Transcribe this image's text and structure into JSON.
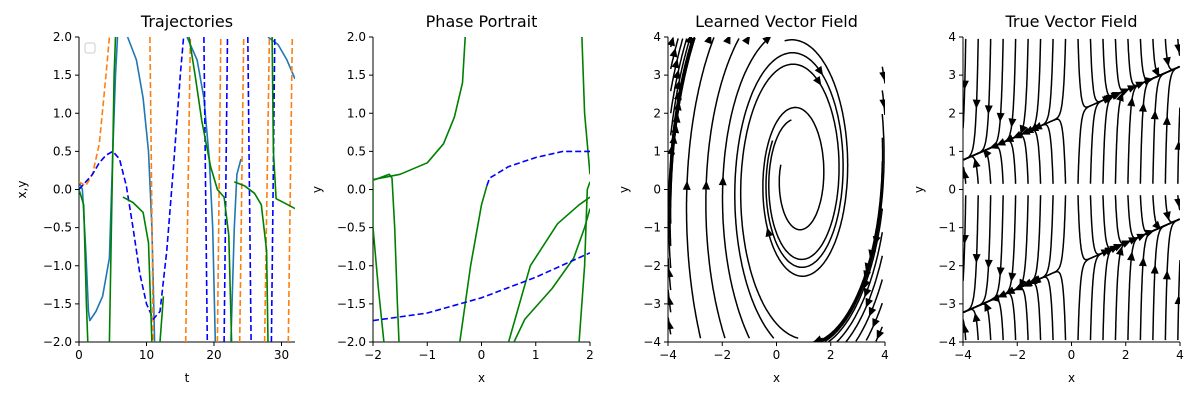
{
  "chart_data": [
    {
      "type": "line",
      "title": "Trajectories",
      "xlabel": "t",
      "ylabel": "x,y",
      "xlim": [
        0,
        32
      ],
      "ylim": [
        -2.0,
        2.0
      ],
      "xticks": [
        0,
        10,
        20,
        30
      ],
      "yticks": [
        -2.0,
        -1.5,
        -1.0,
        -0.5,
        0.0,
        0.5,
        1.0,
        1.5,
        2.0
      ],
      "xtick_labels": [
        "0",
        "10",
        "20",
        "30"
      ],
      "ytick_labels": [
        "−2.0",
        "−1.5",
        "−1.0",
        "−0.5",
        "0.0",
        "0.5",
        "1.0",
        "1.5",
        "2.0"
      ],
      "legend": "top-left (empty)",
      "series": [
        {
          "color": "#1f77b4",
          "style": "solid",
          "points": [
            [
              0,
              0.1
            ],
            [
              0.5,
              0.0
            ],
            [
              1.0,
              -0.8
            ],
            [
              1.4,
              -1.6
            ],
            [
              1.6,
              -1.72
            ],
            [
              2.5,
              -1.6
            ],
            [
              3.5,
              -1.4
            ],
            [
              4.5,
              -0.9
            ],
            [
              5.0,
              0.5
            ],
            [
              5.4,
              1.5
            ],
            [
              5.7,
              2.0
            ]
          ],
          "segments": [
            [
              [
                7.2,
                2.0
              ],
              [
                8.5,
                1.7
              ],
              [
                9.5,
                1.2
              ],
              [
                10.3,
                0.5
              ],
              [
                10.8,
                -0.5
              ],
              [
                11.2,
                -2.0
              ]
            ],
            [
              [
                16.0,
                2.0
              ],
              [
                17.5,
                1.7
              ],
              [
                18.5,
                1.2
              ],
              [
                19.3,
                0.4
              ],
              [
                19.8,
                -0.5
              ],
              [
                20.2,
                -2.0
              ]
            ],
            [
              [
                22.5,
                -2.0
              ],
              [
                23.0,
                -0.5
              ],
              [
                23.4,
                0.2
              ],
              [
                24.0,
                0.4
              ]
            ],
            [
              [
                28.0,
                2.0
              ],
              [
                29.5,
                1.9
              ],
              [
                30.8,
                1.7
              ],
              [
                32.0,
                1.45
              ]
            ]
          ]
        },
        {
          "color": "#ff7f0e",
          "style": "dashed",
          "points": [
            [
              0,
              0.1
            ],
            [
              1.0,
              0.05
            ],
            [
              2.0,
              0.2
            ],
            [
              3.0,
              0.6
            ],
            [
              4.0,
              1.5
            ],
            [
              4.5,
              2.0
            ]
          ],
          "segments": [
            [
              [
                10.5,
                2.0
              ],
              [
                11.0,
                -2.0
              ]
            ],
            [
              [
                15.8,
                -2.0
              ],
              [
                16.5,
                2.0
              ]
            ],
            [
              [
                20.5,
                -2.0
              ],
              [
                21.0,
                2.0
              ]
            ],
            [
              [
                23.8,
                -2.0
              ],
              [
                24.4,
                2.0
              ]
            ],
            [
              [
                27.5,
                -2.0
              ],
              [
                28.2,
                2.0
              ]
            ],
            [
              [
                31.0,
                -2.0
              ],
              [
                31.6,
                2.0
              ]
            ]
          ]
        },
        {
          "color": "#0000ff",
          "style": "dashed",
          "points": [
            [
              0,
              0.0
            ],
            [
              1.0,
              0.1
            ],
            [
              2.0,
              0.2
            ],
            [
              3.0,
              0.35
            ],
            [
              4.0,
              0.45
            ],
            [
              5.0,
              0.5
            ],
            [
              6.0,
              0.4
            ],
            [
              7.0,
              0.05
            ],
            [
              8.0,
              -0.5
            ],
            [
              9.0,
              -1.1
            ],
            [
              10.0,
              -1.5
            ],
            [
              11.0,
              -1.7
            ],
            [
              12.0,
              -1.6
            ],
            [
              13.0,
              -0.8
            ],
            [
              14.0,
              0.3
            ],
            [
              15.0,
              1.5
            ],
            [
              15.5,
              2.0
            ]
          ],
          "segments": [
            [
              [
                18.5,
                2.0
              ],
              [
                19.0,
                -2.0
              ]
            ],
            [
              [
                21.5,
                -2.0
              ],
              [
                22.0,
                2.0
              ]
            ],
            [
              [
                25.0,
                2.0
              ],
              [
                25.5,
                -2.0
              ]
            ],
            [
              [
                28.5,
                -2.0
              ],
              [
                29.0,
                2.0
              ]
            ]
          ]
        },
        {
          "color": "#008000",
          "style": "solid",
          "points": [
            [
              0,
              0.0
            ],
            [
              0.7,
              -0.2
            ],
            [
              1.1,
              -1.5
            ],
            [
              1.3,
              -2.0
            ]
          ],
          "segments": [
            [
              [
                4.5,
                -2.0
              ],
              [
                4.8,
                -0.5
              ],
              [
                5.0,
                0.5
              ],
              [
                5.2,
                1.5
              ],
              [
                5.4,
                2.0
              ]
            ],
            [
              [
                6.5,
                -0.1
              ],
              [
                8.0,
                -0.17
              ],
              [
                9.5,
                -0.3
              ],
              [
                10.3,
                -0.7
              ],
              [
                10.8,
                -2.0
              ]
            ],
            [
              [
                12.0,
                -2.0
              ],
              [
                12.5,
                -1.4
              ]
            ],
            [
              [
                16.3,
                2.0
              ],
              [
                17.2,
                1.5
              ],
              [
                18.2,
                0.9
              ],
              [
                19.5,
                0.3
              ],
              [
                20.5,
                0.0
              ],
              [
                21.5,
                -0.1
              ],
              [
                22.2,
                -0.6
              ],
              [
                22.6,
                -2.0
              ]
            ],
            [
              [
                23.0,
                0.1
              ],
              [
                24.5,
                0.05
              ],
              [
                26.0,
                -0.05
              ],
              [
                27.0,
                -0.2
              ],
              [
                27.8,
                -0.8
              ],
              [
                28.0,
                -2.0
              ]
            ],
            [
              [
                28.6,
                2.0
              ],
              [
                28.8,
                0.5
              ],
              [
                29.2,
                -0.12
              ],
              [
                30.5,
                -0.18
              ],
              [
                32.0,
                -0.25
              ]
            ]
          ]
        }
      ]
    },
    {
      "type": "line",
      "title": "Phase Portrait",
      "xlabel": "x",
      "ylabel": "y",
      "xlim": [
        -2,
        2
      ],
      "ylim": [
        -2.0,
        2.0
      ],
      "xticks": [
        -2,
        -1,
        0,
        1,
        2
      ],
      "yticks": [
        -2.0,
        -1.5,
        -1.0,
        -0.5,
        0.0,
        0.5,
        1.0,
        1.5,
        2.0
      ],
      "xtick_labels": [
        "−2",
        "−1",
        "0",
        "1",
        "2"
      ],
      "ytick_labels": [
        "−2.0",
        "−1.5",
        "−1.0",
        "−0.5",
        "0.0",
        "0.5",
        "1.0",
        "1.5",
        "2.0"
      ],
      "series": [
        {
          "color": "#008000",
          "style": "solid",
          "segments": [
            [
              [
                -2.0,
                0.13
              ],
              [
                -1.5,
                0.2
              ],
              [
                -1.0,
                0.35
              ],
              [
                -0.7,
                0.6
              ],
              [
                -0.5,
                0.95
              ],
              [
                -0.35,
                1.4
              ],
              [
                -0.3,
                2.0
              ]
            ],
            [
              [
                -2.0,
                0.12
              ],
              [
                -1.7,
                0.2
              ],
              [
                -1.65,
                0.15
              ],
              [
                -1.6,
                -0.5
              ],
              [
                -1.55,
                -1.5
              ],
              [
                -1.52,
                -2.0
              ]
            ],
            [
              [
                -2.0,
                0.1
              ],
              [
                -2.0,
                -0.5
              ],
              [
                -1.9,
                -1.3
              ],
              [
                -1.8,
                -2.0
              ]
            ],
            [
              [
                -0.4,
                -2.0
              ],
              [
                -0.2,
                -1.0
              ],
              [
                0.0,
                -0.2
              ],
              [
                0.1,
                0.05
              ]
            ],
            [
              [
                0.5,
                -2.0
              ],
              [
                0.9,
                -1.0
              ],
              [
                1.4,
                -0.45
              ],
              [
                1.8,
                -0.2
              ],
              [
                2.0,
                -0.1
              ]
            ],
            [
              [
                0.6,
                -2.0
              ],
              [
                0.8,
                -1.7
              ],
              [
                1.3,
                -1.3
              ],
              [
                1.7,
                -0.9
              ],
              [
                1.9,
                -0.5
              ],
              [
                2.0,
                -0.25
              ]
            ],
            [
              [
                1.8,
                -2.0
              ],
              [
                1.9,
                -1.0
              ],
              [
                1.95,
                0.0
              ],
              [
                2.0,
                0.1
              ]
            ],
            [
              [
                1.85,
                2.0
              ],
              [
                1.9,
                1.0
              ],
              [
                2.0,
                0.2
              ]
            ]
          ]
        },
        {
          "color": "#0000ff",
          "style": "dashed",
          "segments": [
            [
              [
                0.1,
                0.05
              ],
              [
                0.15,
                0.15
              ],
              [
                0.5,
                0.3
              ],
              [
                1.0,
                0.42
              ],
              [
                1.5,
                0.5
              ],
              [
                2.0,
                0.5
              ]
            ],
            [
              [
                -2.0,
                -1.72
              ],
              [
                -1.0,
                -1.62
              ],
              [
                0.0,
                -1.42
              ],
              [
                1.0,
                -1.15
              ],
              [
                2.0,
                -0.83
              ]
            ]
          ]
        }
      ]
    },
    {
      "type": "streamplot",
      "title": "Learned Vector Field",
      "xlabel": "x",
      "ylabel": "y",
      "xlim": [
        -4,
        4
      ],
      "ylim": [
        -4,
        4
      ],
      "xticks": [
        -4,
        -2,
        0,
        2,
        4
      ],
      "yticks": [
        -4,
        -3,
        -2,
        -1,
        0,
        1,
        2,
        3,
        4
      ],
      "xtick_labels": [
        "−4",
        "−2",
        "0",
        "2",
        "4"
      ],
      "ytick_labels": [
        "−4",
        "−3",
        "−2",
        "−1",
        "0",
        "1",
        "2",
        "3",
        "4"
      ],
      "field": "clockwise spiral converging toward approximately (0.8, 0.3)"
    },
    {
      "type": "streamplot",
      "title": "True Vector Field",
      "xlabel": "x",
      "ylabel": "y",
      "xlim": [
        -4,
        4
      ],
      "ylim": [
        -4,
        4
      ],
      "xticks": [
        -4,
        -2,
        0,
        2,
        4
      ],
      "yticks": [
        -4,
        -3,
        -2,
        -1,
        0,
        1,
        2,
        3,
        4
      ],
      "xtick_labels": [
        "−4",
        "−2",
        "0",
        "2",
        "4"
      ],
      "ytick_labels": [
        "−4",
        "−3",
        "−2",
        "−1",
        "0",
        "1",
        "2",
        "3",
        "4"
      ],
      "field": "near-vertical streamlines converging toward y ≈ ±2, flowing down for x < 0 and up for x > 0"
    }
  ]
}
